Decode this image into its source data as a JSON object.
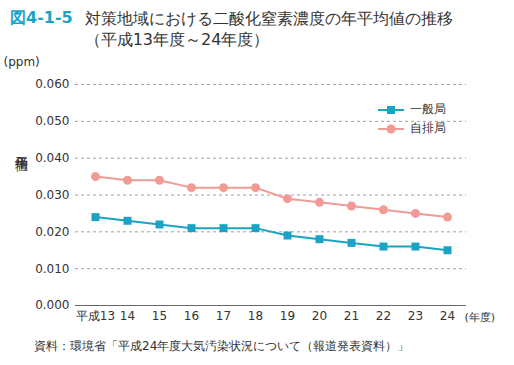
{
  "chart_data": {
    "type": "line",
    "figure_label": "図4-1-5",
    "title": "対策地域における二酸化窒素濃度の年平均値の推移（平成13年度～24年度）",
    "source": "資料：環境省「平成24年度大気汚染状況について（報道発表資料）」",
    "ylabel": "年平均値",
    "y_unit": "(ppm)",
    "xlabel": "(年度)",
    "categories": [
      "平成13",
      "14",
      "15",
      "16",
      "17",
      "18",
      "19",
      "20",
      "21",
      "22",
      "23",
      "24"
    ],
    "series": [
      {
        "name": "一般局",
        "color": "#1aa3c4",
        "marker": "square",
        "values": [
          0.024,
          0.023,
          0.022,
          0.021,
          0.021,
          0.021,
          0.019,
          0.018,
          0.017,
          0.016,
          0.016,
          0.015
        ]
      },
      {
        "name": "自排局",
        "color": "#f29a96",
        "marker": "circle",
        "values": [
          0.035,
          0.034,
          0.034,
          0.032,
          0.032,
          0.032,
          0.029,
          0.028,
          0.027,
          0.026,
          0.025,
          0.024
        ]
      }
    ],
    "ylim": [
      0,
      0.06
    ],
    "yticks": [
      {
        "value": 0,
        "label": "0.000"
      },
      {
        "value": 0.01,
        "label": "0.010"
      },
      {
        "value": 0.02,
        "label": "0.020"
      },
      {
        "value": 0.03,
        "label": "0.030"
      },
      {
        "value": 0.04,
        "label": "0.040"
      },
      {
        "value": 0.05,
        "label": "0.050"
      },
      {
        "value": 0.06,
        "label": "0.060"
      }
    ],
    "grid": true,
    "legend": "top-right"
  }
}
